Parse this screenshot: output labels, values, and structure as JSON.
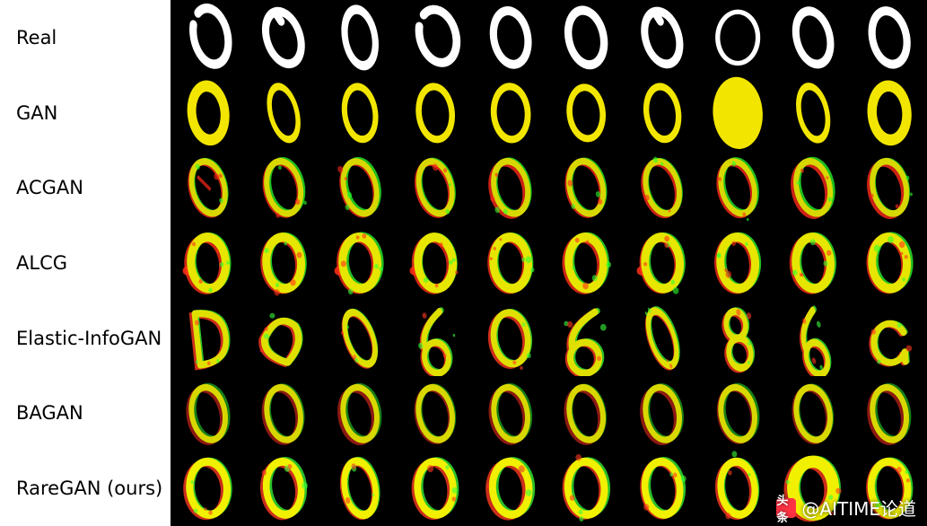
{
  "figure": {
    "type": "image-grid",
    "background_color": "#000000",
    "label_column_background": "#ffffff",
    "label_fontsize": 21,
    "label_color": "#000000",
    "columns": 10,
    "cell_aspect": 1.0,
    "rows": [
      {
        "label": "Real",
        "palette": {
          "stroke": "#ffffff",
          "fill": "none",
          "stroke_width": 12,
          "mode": "clean"
        },
        "variants": [
          {
            "rot": -12,
            "sx": 0.8,
            "sy": 1.05,
            "break": true
          },
          {
            "rot": -18,
            "sx": 0.78,
            "sy": 1.0,
            "top_notch": true
          },
          {
            "rot": -10,
            "sx": 0.7,
            "sy": 1.05
          },
          {
            "rot": -15,
            "sx": 0.85,
            "sy": 1.0,
            "break": true
          },
          {
            "rot": -10,
            "sx": 0.8,
            "sy": 1.0
          },
          {
            "rot": -12,
            "sx": 0.82,
            "sy": 1.02
          },
          {
            "rot": -16,
            "sx": 0.78,
            "sy": 1.0,
            "top_notch": true
          },
          {
            "rot": 0,
            "sx": 0.95,
            "sy": 0.95,
            "thin": true
          },
          {
            "rot": -14,
            "sx": 0.78,
            "sy": 1.0
          },
          {
            "rot": -12,
            "sx": 0.8,
            "sy": 1.0
          }
        ]
      },
      {
        "label": "GAN",
        "palette": {
          "stroke": "#f2e600",
          "fill": "none",
          "stroke_width": 10,
          "mode": "clean"
        },
        "variants": [
          {
            "rot": -6,
            "sx": 0.78,
            "sy": 1.0,
            "thick": true
          },
          {
            "rot": -14,
            "sx": 0.62,
            "sy": 1.0
          },
          {
            "rot": -8,
            "sx": 0.72,
            "sy": 0.98
          },
          {
            "rot": -6,
            "sx": 0.78,
            "sy": 0.98
          },
          {
            "rot": -4,
            "sx": 0.8,
            "sy": 0.98
          },
          {
            "rot": -6,
            "sx": 0.78,
            "sy": 0.95
          },
          {
            "rot": -8,
            "sx": 0.75,
            "sy": 0.98
          },
          {
            "rot": -4,
            "sx": 0.82,
            "sy": 1.0,
            "thick": true,
            "blob": true
          },
          {
            "rot": -12,
            "sx": 0.65,
            "sy": 1.0
          },
          {
            "rot": -4,
            "sx": 0.82,
            "sy": 1.0,
            "thick": true
          }
        ]
      },
      {
        "label": "ACGAN",
        "palette": {
          "stroke": "#d8d800",
          "ghost_r": "#ff2a1a",
          "ghost_g": "#2aff2a",
          "stroke_width": 9,
          "mode": "noisy"
        },
        "variants": [
          {
            "rot": -14,
            "sx": 0.75,
            "sy": 0.98,
            "dash": true
          },
          {
            "rot": -12,
            "sx": 0.78,
            "sy": 0.98
          },
          {
            "rot": -14,
            "sx": 0.75,
            "sy": 0.98
          },
          {
            "rot": -14,
            "sx": 0.75,
            "sy": 0.98
          },
          {
            "rot": -12,
            "sx": 0.78,
            "sy": 0.98
          },
          {
            "rot": -12,
            "sx": 0.78,
            "sy": 0.98
          },
          {
            "rot": -14,
            "sx": 0.76,
            "sy": 0.98
          },
          {
            "rot": -14,
            "sx": 0.76,
            "sy": 0.98
          },
          {
            "rot": -12,
            "sx": 0.78,
            "sy": 0.98
          },
          {
            "rot": -12,
            "sx": 0.78,
            "sy": 0.98
          }
        ]
      },
      {
        "label": "ALCG",
        "palette": {
          "stroke": "#e6e600",
          "ghost_r": "#ff3018",
          "ghost_g": "#30ff30",
          "stroke_width": 13,
          "mode": "blotchy"
        },
        "variants": [
          {
            "rot": -4,
            "sx": 0.82,
            "sy": 0.95,
            "left_flare": true
          },
          {
            "rot": -4,
            "sx": 0.82,
            "sy": 0.95
          },
          {
            "rot": -4,
            "sx": 0.82,
            "sy": 0.95,
            "left_flare": true
          },
          {
            "rot": -4,
            "sx": 0.82,
            "sy": 0.95,
            "left_flare": true
          },
          {
            "rot": -4,
            "sx": 0.82,
            "sy": 0.95
          },
          {
            "rot": -4,
            "sx": 0.82,
            "sy": 0.95
          },
          {
            "rot": -4,
            "sx": 0.82,
            "sy": 0.95,
            "left_flare": true
          },
          {
            "rot": -4,
            "sx": 0.82,
            "sy": 0.95
          },
          {
            "rot": -4,
            "sx": 0.82,
            "sy": 0.95
          },
          {
            "rot": -4,
            "sx": 0.82,
            "sy": 0.95
          }
        ]
      },
      {
        "label": "Elastic-InfoGAN",
        "palette": {
          "stroke": "#e0e000",
          "ghost_r": "#ff3a20",
          "ghost_g": "#3aff3a",
          "stroke_width": 10,
          "mode": "distorted"
        },
        "variants": [
          {
            "shape": "D",
            "rot": -6,
            "sx": 0.75,
            "sy": 0.95
          },
          {
            "shape": "blob",
            "rot": 0,
            "sx": 0.9,
            "sy": 0.9
          },
          {
            "shape": "0",
            "rot": -20,
            "sx": 0.6,
            "sy": 1.0
          },
          {
            "shape": "6",
            "rot": -10,
            "sx": 0.7,
            "sy": 0.95
          },
          {
            "shape": "0",
            "rot": -8,
            "sx": 0.8,
            "sy": 0.95
          },
          {
            "shape": "6",
            "rot": -4,
            "sx": 0.85,
            "sy": 0.95
          },
          {
            "shape": "0",
            "rot": -18,
            "sx": 0.55,
            "sy": 1.05
          },
          {
            "shape": "8",
            "rot": -8,
            "sx": 0.65,
            "sy": 1.0
          },
          {
            "shape": "6",
            "rot": -16,
            "sx": 0.6,
            "sy": 1.0
          },
          {
            "shape": "a",
            "rot": -4,
            "sx": 0.85,
            "sy": 0.9
          }
        ]
      },
      {
        "label": "BAGAN",
        "palette": {
          "stroke": "#d8d800",
          "ghost_r": "#ff3020",
          "ghost_g": "#30ff30",
          "stroke_width": 9,
          "mode": "soft"
        },
        "variants": [
          {
            "rot": -10,
            "sx": 0.78,
            "sy": 0.98
          },
          {
            "rot": -10,
            "sx": 0.78,
            "sy": 0.98
          },
          {
            "rot": -10,
            "sx": 0.78,
            "sy": 0.98
          },
          {
            "rot": -10,
            "sx": 0.78,
            "sy": 0.98
          },
          {
            "rot": -10,
            "sx": 0.78,
            "sy": 0.98
          },
          {
            "rot": -10,
            "sx": 0.78,
            "sy": 0.98
          },
          {
            "rot": -10,
            "sx": 0.78,
            "sy": 0.98
          },
          {
            "rot": -10,
            "sx": 0.78,
            "sy": 0.98
          },
          {
            "rot": -10,
            "sx": 0.78,
            "sy": 0.98
          },
          {
            "rot": -10,
            "sx": 0.78,
            "sy": 0.98
          }
        ]
      },
      {
        "label": "RareGAN (ours)",
        "palette": {
          "stroke": "#f0f000",
          "ghost_r": "#ff3a20",
          "ghost_g": "#3aff3a",
          "stroke_width": 11,
          "mode": "bold"
        },
        "variants": [
          {
            "rot": -4,
            "sx": 0.88,
            "sy": 0.98
          },
          {
            "rot": -6,
            "sx": 0.82,
            "sy": 0.98
          },
          {
            "rot": -10,
            "sx": 0.72,
            "sy": 1.0
          },
          {
            "rot": -4,
            "sx": 0.84,
            "sy": 0.98
          },
          {
            "rot": -4,
            "sx": 0.86,
            "sy": 0.98
          },
          {
            "rot": -4,
            "sx": 0.86,
            "sy": 0.98
          },
          {
            "rot": -6,
            "sx": 0.82,
            "sy": 0.98
          },
          {
            "rot": -6,
            "sx": 0.8,
            "sy": 0.98
          },
          {
            "rot": -2,
            "sx": 0.95,
            "sy": 0.98,
            "thick": true
          },
          {
            "rot": -4,
            "sx": 0.86,
            "sy": 0.98
          }
        ]
      }
    ]
  },
  "watermark": {
    "icon_bg": "#ff3344",
    "icon_text": "头条",
    "text": "@AITIME论道",
    "text_color": "#ffffff"
  }
}
